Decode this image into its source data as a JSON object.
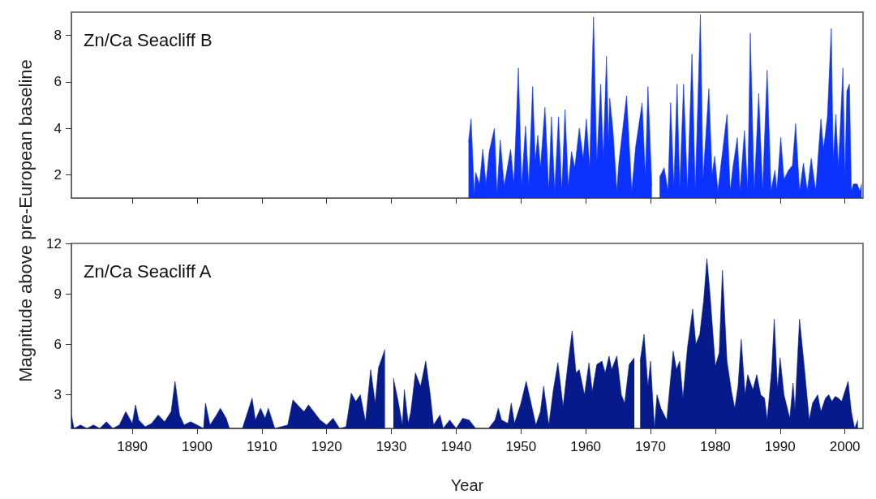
{
  "chart_data": [
    {
      "type": "area",
      "title": "Zn/Ca Seacliff B",
      "ylabel": "Magnitude above pre-European baseline",
      "color": "#0b32ff",
      "xlim": [
        1880.6,
        2002.8
      ],
      "ylim": [
        1,
        9
      ],
      "xticks": [
        1890,
        1900,
        1910,
        1920,
        1930,
        1940,
        1950,
        1960,
        1970,
        1980,
        1990,
        2000
      ],
      "yticks": [
        2,
        4,
        6,
        8
      ],
      "tick_labels": "y",
      "x": [
        1941.9,
        1942.3,
        1942.8,
        1943.0,
        1943.6,
        1944.1,
        1944.6,
        1945.1,
        1945.9,
        1946.3,
        1946.8,
        1947.4,
        1948.4,
        1948.9,
        1949.6,
        1950.1,
        1950.7,
        1951.2,
        1951.8,
        1952.2,
        1952.6,
        1953.0,
        1953.7,
        1954.3,
        1954.7,
        1955.2,
        1955.8,
        1956.3,
        1956.8,
        1957.3,
        1957.8,
        1958.3,
        1959.0,
        1959.6,
        1960.1,
        1960.6,
        1961.2,
        1961.7,
        1962.3,
        1962.7,
        1963.2,
        1963.5,
        1963.7,
        1964.2,
        1964.8,
        1965.1,
        1966.3,
        1967.1,
        1967.7,
        1968.7,
        1969.2,
        1969.6,
        1970.2,
        1970.7,
        1971.0,
        1971.4,
        1972.1,
        1972.7,
        1973.1,
        1973.6,
        1974.1,
        1974.5,
        1975.1,
        1975.7,
        1976.4,
        1976.9,
        1977.7,
        1978.1,
        1979.0,
        1979.5,
        1979.9,
        1980.4,
        1980.9,
        1981.8,
        1982.3,
        1982.7,
        1983.4,
        1983.8,
        1984.5,
        1985.0,
        1985.4,
        1986.0,
        1986.7,
        1987.3,
        1988.0,
        1988.6,
        1989.2,
        1989.5,
        1990.1,
        1990.6,
        1991.3,
        1991.9,
        1992.4,
        1993.0,
        1993.6,
        1994.2,
        1994.8,
        1995.5,
        1995.9,
        1996.3,
        1996.7,
        1997.3,
        1997.9,
        1998.2,
        1998.6,
        1999.0,
        1999.7,
        2000.0,
        2000.3,
        2000.7,
        2001.0,
        2001.3,
        2001.9,
        2002.3,
        2002.6
      ],
      "values": [
        3.4,
        4.4,
        1.1,
        2.1,
        1.6,
        3.1,
        1.6,
        3.0,
        4.0,
        1.2,
        3.5,
        1.5,
        3.1,
        1.6,
        6.6,
        1.5,
        4.1,
        1.5,
        5.8,
        2.6,
        3.7,
        2.3,
        4.9,
        1.3,
        4.5,
        1.3,
        4.5,
        1.3,
        4.8,
        1.5,
        3.0,
        2.3,
        4.0,
        2.7,
        4.4,
        2.3,
        8.8,
        2.5,
        5.9,
        2.7,
        7.1,
        3.4,
        5.3,
        3.9,
        1.3,
        2.5,
        5.4,
        1.3,
        3.2,
        5.1,
        1.9,
        5.8,
        1.5,
        null,
        null,
        1.9,
        2.3,
        1.3,
        5.1,
        1.5,
        5.9,
        1.4,
        5.9,
        1.3,
        7.2,
        1.3,
        8.9,
        1.8,
        5.7,
        2.0,
        2.8,
        1.3,
        2.5,
        4.6,
        1.3,
        2.3,
        3.6,
        1.3,
        3.9,
        1.3,
        8.1,
        1.3,
        5.5,
        1.3,
        6.5,
        1.3,
        2.2,
        1.3,
        3.6,
        1.8,
        2.2,
        2.4,
        4.2,
        1.3,
        2.5,
        1.3,
        2.7,
        1.3,
        2.9,
        4.4,
        3.1,
        4.5,
        8.3,
        2.6,
        4.6,
        2.3,
        6.6,
        1.8,
        5.6,
        5.9,
        1.3,
        1.6,
        1.6,
        1.3,
        1.6
      ]
    },
    {
      "type": "area",
      "title": "Zn/Ca Seacliff A",
      "xlabel": "Year",
      "color": "#061a8c",
      "xlim": [
        1880.6,
        2002.8
      ],
      "ylim": [
        1,
        12
      ],
      "xticks": [
        1890,
        1900,
        1910,
        1920,
        1930,
        1940,
        1950,
        1960,
        1970,
        1980,
        1990,
        2000
      ],
      "yticks": [
        3,
        6,
        9,
        12
      ],
      "x": [
        1880.6,
        1881,
        1882,
        1883,
        1884,
        1885,
        1886,
        1887,
        1888,
        1889,
        1890,
        1890.5,
        1891,
        1892,
        1893,
        1894,
        1895,
        1896,
        1896.6,
        1897.3,
        1898,
        1899,
        1900,
        1901,
        1901.3,
        1902,
        1903,
        1903.6,
        1904.5,
        1905,
        1907,
        1908.5,
        1909,
        1909.8,
        1910.5,
        1911,
        1912,
        1914,
        1914.8,
        1915.5,
        1916.5,
        1917.2,
        1918,
        1919,
        1920,
        1921,
        1922,
        1923,
        1923.8,
        1924.5,
        1925.2,
        1926,
        1926.8,
        1927.5,
        1928,
        1929,
        1929.8,
        1930.3,
        1931,
        1931.7,
        1932,
        1932.6,
        1933,
        1933.7,
        1934.5,
        1935.3,
        1936,
        1936.5,
        1937.5,
        1938,
        1939,
        1940,
        1941,
        1942,
        1943,
        1945,
        1946,
        1946.5,
        1947,
        1948,
        1948.5,
        1949,
        1950,
        1950.8,
        1951.5,
        1952.3,
        1953,
        1953.5,
        1954.3,
        1955,
        1955.7,
        1956.5,
        1957.3,
        1957.9,
        1958.5,
        1959,
        1959.8,
        1960.5,
        1961,
        1961.7,
        1962.5,
        1963,
        1963.6,
        1964,
        1964.8,
        1965.5,
        1966,
        1966.7,
        1967.5,
        1968,
        1968.4,
        1969,
        1969.6,
        1970,
        1970.6,
        1971,
        1971.6,
        1972.5,
        1973.5,
        1974,
        1974.5,
        1975,
        1975.7,
        1976.5,
        1977,
        1977.6,
        1978.2,
        1978.7,
        1979.2,
        1980,
        1980.6,
        1981.1,
        1981.8,
        1982.5,
        1983,
        1983.5,
        1984,
        1984.6,
        1985,
        1985.8,
        1986.4,
        1987,
        1987.6,
        1988,
        1988.7,
        1989.1,
        1989.6,
        1990,
        1990.6,
        1991.5,
        1992,
        1992.3,
        1993,
        1993.7,
        1994.5,
        1995,
        1995.8,
        1996.3,
        1997,
        1997.5,
        1998,
        1998.5,
        1999,
        1999.5,
        2000,
        2000.5,
        2001,
        2001.5,
        2002
      ],
      "values": [
        1.8,
        1.0,
        1.2,
        1.0,
        1.2,
        1.0,
        1.4,
        1.0,
        1.2,
        2.0,
        1.3,
        2.4,
        1.5,
        1.1,
        1.3,
        1.8,
        1.4,
        2.0,
        3.8,
        1.8,
        1.2,
        1.4,
        1.2,
        1.0,
        2.5,
        1.2,
        1.8,
        2.2,
        1.6,
        1.0,
        1.0,
        2.8,
        1.5,
        2.2,
        1.6,
        2.2,
        1.0,
        1.2,
        2.7,
        2.4,
        2.0,
        2.4,
        2.0,
        1.5,
        1.2,
        1.6,
        1.0,
        1.1,
        3.1,
        2.6,
        3.0,
        1.4,
        4.5,
        2.5,
        4.6,
        5.7,
        null,
        4.0,
        2.7,
        1.2,
        3.3,
        1.3,
        2.0,
        4.3,
        3.5,
        5.0,
        3.0,
        1.2,
        1.8,
        1.0,
        1.5,
        1.0,
        1.6,
        1.5,
        1.0,
        1.0,
        1.5,
        2.2,
        1.5,
        1.3,
        2.5,
        1.3,
        2.5,
        3.8,
        2.6,
        1.2,
        2.0,
        3.5,
        1.2,
        3.3,
        4.9,
        2.3,
        5.0,
        6.8,
        4.3,
        4.5,
        3.0,
        4.9,
        3.2,
        4.8,
        5.0,
        4.3,
        5.3,
        4.5,
        5.3,
        3.0,
        2.5,
        4.8,
        5.2,
        null,
        5.0,
        6.6,
        3.5,
        5.0,
        1.0,
        3.0,
        2.2,
        1.5,
        5.6,
        4.5,
        5.0,
        2.8,
        5.8,
        8.1,
        6.0,
        6.6,
        8.6,
        11.1,
        8.9,
        4.7,
        5.5,
        10.4,
        5.0,
        3.2,
        2.2,
        3.5,
        6.3,
        3.0,
        4.2,
        3.3,
        4.2,
        3.0,
        2.8,
        1.5,
        4.5,
        7.5,
        3.3,
        5.2,
        3.0,
        1.6,
        3.7,
        2.1,
        7.5,
        4.8,
        1.5,
        2.5,
        3.0,
        2.0,
        2.8,
        3.0,
        2.6,
        2.9,
        2.8,
        2.6,
        3.2,
        3.8,
        2.0,
        1.0,
        1.5
      ]
    }
  ]
}
